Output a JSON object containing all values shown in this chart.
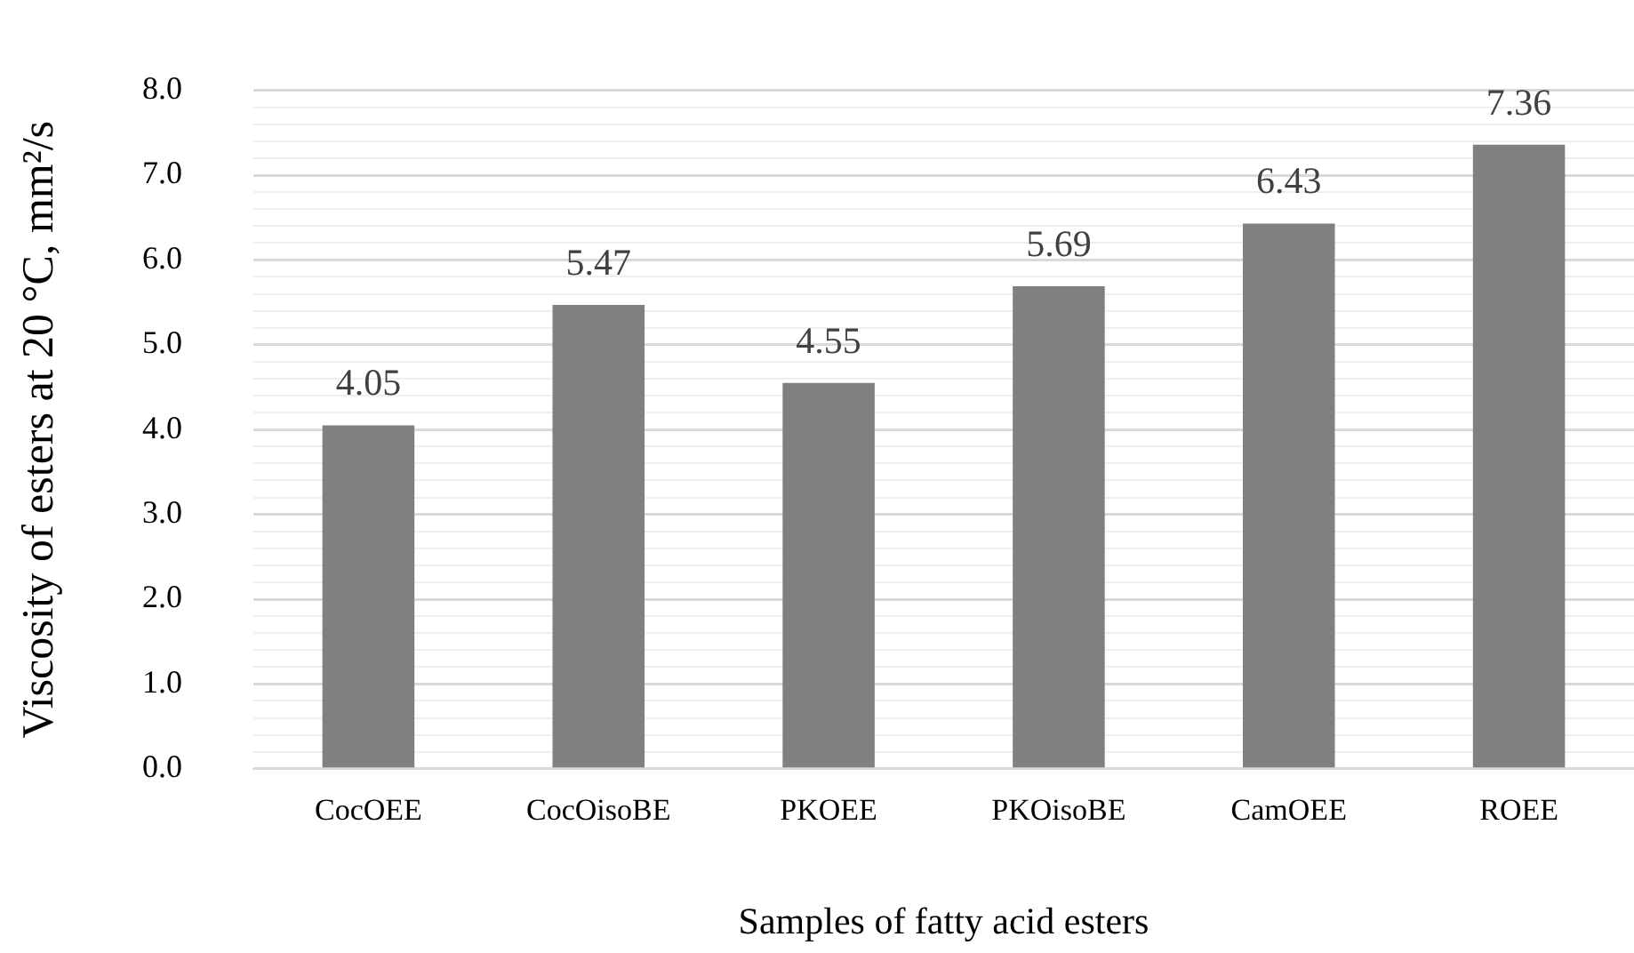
{
  "chart_data": {
    "type": "bar",
    "xlabel": "Samples of fatty acid esters",
    "ylabel": "Viscosity of esters at 20 °C, mm²/s",
    "categories": [
      "CocOEE",
      "CocOisoBE",
      "PKOEE",
      "PKOisoBE",
      "CamOEE",
      "ROEE"
    ],
    "values": [
      4.05,
      5.47,
      4.55,
      5.69,
      6.43,
      7.36
    ],
    "color": "#808080",
    "ylim": [
      0,
      8
    ],
    "yticks": [
      {
        "value": 0,
        "label": "0.0"
      },
      {
        "value": 0.2,
        "label": null
      },
      {
        "value": 0.4,
        "label": null
      },
      {
        "value": 0.6,
        "label": null
      },
      {
        "value": 0.8,
        "label": null
      },
      {
        "value": 1,
        "label": "1.0"
      },
      {
        "value": 1.2,
        "label": null
      },
      {
        "value": 1.4,
        "label": null
      },
      {
        "value": 1.6,
        "label": null
      },
      {
        "value": 1.8,
        "label": null
      },
      {
        "value": 2,
        "label": "2.0"
      },
      {
        "value": 2.2,
        "label": null
      },
      {
        "value": 2.4,
        "label": null
      },
      {
        "value": 2.6,
        "label": null
      },
      {
        "value": 2.8,
        "label": null
      },
      {
        "value": 3,
        "label": "3.0"
      },
      {
        "value": 3.2,
        "label": null
      },
      {
        "value": 3.4,
        "label": null
      },
      {
        "value": 3.6,
        "label": null
      },
      {
        "value": 3.8,
        "label": null
      },
      {
        "value": 4,
        "label": "4.0"
      },
      {
        "value": 4.2,
        "label": null
      },
      {
        "value": 4.4,
        "label": null
      },
      {
        "value": 4.6,
        "label": null
      },
      {
        "value": 4.8,
        "label": null
      },
      {
        "value": 5,
        "label": "5.0"
      },
      {
        "value": 5.2,
        "label": null
      },
      {
        "value": 5.4,
        "label": null
      },
      {
        "value": 5.6,
        "label": null
      },
      {
        "value": 5.8,
        "label": null
      },
      {
        "value": 6,
        "label": "6.0"
      },
      {
        "value": 6.2,
        "label": null
      },
      {
        "value": 6.4,
        "label": null
      },
      {
        "value": 6.6,
        "label": null
      },
      {
        "value": 6.8,
        "label": null
      },
      {
        "value": 7,
        "label": "7.0"
      },
      {
        "value": 7.2,
        "label": null
      },
      {
        "value": 7.4,
        "label": null
      },
      {
        "value": 7.6,
        "label": null
      },
      {
        "value": 7.8,
        "label": null
      },
      {
        "value": 8,
        "label": "8.0"
      }
    ],
    "grid": "y",
    "data_labels": true,
    "legend": false
  }
}
